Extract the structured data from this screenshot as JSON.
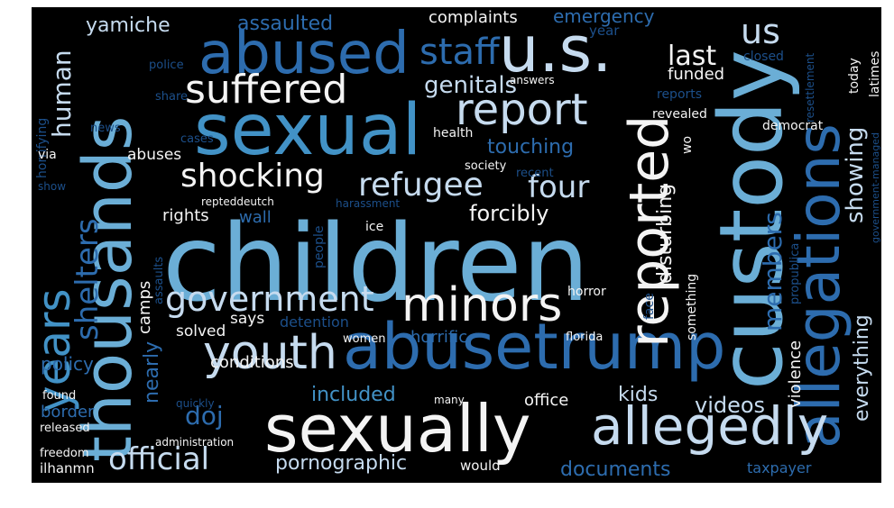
{
  "palette": {
    "white": "#f4f4f4",
    "pale": "#c6dbef",
    "mid": "#6baed6",
    "blue": "#4292c6",
    "dark": "#2d6cae",
    "deep": "#1c4f8a",
    "background": "#000000"
  },
  "words": [
    {
      "text": "children",
      "color": "mid"
    },
    {
      "text": "thousands",
      "color": "mid"
    },
    {
      "text": "custody",
      "color": "mid"
    },
    {
      "text": "sexual",
      "color": "blue"
    },
    {
      "text": "abusetrump",
      "color": "dark"
    },
    {
      "text": "sexually",
      "color": "white"
    },
    {
      "text": "allegations",
      "color": "dark"
    },
    {
      "text": "abused",
      "color": "dark"
    },
    {
      "text": "u.s.",
      "color": "pale"
    },
    {
      "text": "reported",
      "color": "white"
    },
    {
      "text": "allegedly",
      "color": "pale"
    },
    {
      "text": "minors",
      "color": "white"
    },
    {
      "text": "youth",
      "color": "pale"
    },
    {
      "text": "suffered",
      "color": "white"
    },
    {
      "text": "years",
      "color": "blue"
    },
    {
      "text": "report",
      "color": "pale"
    },
    {
      "text": "staff",
      "color": "dark"
    },
    {
      "text": "government",
      "color": "pale"
    },
    {
      "text": "official",
      "color": "pale"
    },
    {
      "text": "shocking",
      "color": "white"
    },
    {
      "text": "refugee",
      "color": "pale"
    },
    {
      "text": "shelters",
      "color": "dark"
    },
    {
      "text": "members",
      "color": "dark"
    },
    {
      "text": "human",
      "color": "pale"
    },
    {
      "text": "genitals",
      "color": "pale"
    },
    {
      "text": "four",
      "color": "pale"
    },
    {
      "text": "us",
      "color": "pale"
    },
    {
      "text": "last",
      "color": "white"
    },
    {
      "text": "yamiche",
      "color": "pale"
    },
    {
      "text": "assaulted",
      "color": "dark"
    },
    {
      "text": "complaints",
      "color": "white"
    },
    {
      "text": "emergency",
      "color": "dark"
    },
    {
      "text": "showing",
      "color": "pale"
    },
    {
      "text": "touching",
      "color": "dark"
    },
    {
      "text": "forcibly",
      "color": "white"
    },
    {
      "text": "disturbing",
      "color": "white"
    },
    {
      "text": "pornographic",
      "color": "pale"
    },
    {
      "text": "documents",
      "color": "dark"
    },
    {
      "text": "doj",
      "color": "dark"
    },
    {
      "text": "included",
      "color": "blue"
    },
    {
      "text": "kids",
      "color": "pale"
    },
    {
      "text": "videos",
      "color": "pale"
    },
    {
      "text": "everything",
      "color": "pale"
    },
    {
      "text": "violence",
      "color": "white"
    },
    {
      "text": "nearly",
      "color": "dark"
    },
    {
      "text": "policy",
      "color": "dark"
    },
    {
      "text": "border",
      "color": "dark"
    },
    {
      "text": "rights",
      "color": "white"
    },
    {
      "text": "wall",
      "color": "dark"
    },
    {
      "text": "camps",
      "color": "white"
    },
    {
      "text": "says",
      "color": "white"
    },
    {
      "text": "detention",
      "color": "deep"
    },
    {
      "text": "solved",
      "color": "white"
    },
    {
      "text": "horrific",
      "color": "dark"
    },
    {
      "text": "conditions",
      "color": "white"
    },
    {
      "text": "office",
      "color": "white"
    },
    {
      "text": "taxpayer",
      "color": "dark"
    },
    {
      "text": "abuses",
      "color": "white"
    },
    {
      "text": "funded",
      "color": "white"
    },
    {
      "text": "year",
      "color": "deep"
    },
    {
      "text": "police",
      "color": "deep"
    },
    {
      "text": "share",
      "color": "deep"
    },
    {
      "text": "horrifying",
      "color": "deep"
    },
    {
      "text": "news",
      "color": "deep"
    },
    {
      "text": "via",
      "color": "white"
    },
    {
      "text": "show",
      "color": "deep"
    },
    {
      "text": "cases",
      "color": "deep"
    },
    {
      "text": "health",
      "color": "white"
    },
    {
      "text": "society",
      "color": "white"
    },
    {
      "text": "recent",
      "color": "deep"
    },
    {
      "text": "repteddeutch",
      "color": "white"
    },
    {
      "text": "harassment",
      "color": "deep"
    },
    {
      "text": "ice",
      "color": "white"
    },
    {
      "text": "people",
      "color": "deep"
    },
    {
      "text": "assaults",
      "color": "deep"
    },
    {
      "text": "wo",
      "color": "white"
    },
    {
      "text": "answers",
      "color": "white"
    },
    {
      "text": "revealed",
      "color": "white"
    },
    {
      "text": "reports",
      "color": "deep"
    },
    {
      "text": "closed",
      "color": "deep"
    },
    {
      "text": "democrat",
      "color": "white"
    },
    {
      "text": "resettlement",
      "color": "deep"
    },
    {
      "text": "today",
      "color": "white"
    },
    {
      "text": "latimes",
      "color": "white"
    },
    {
      "text": "government-managed",
      "color": "deep"
    },
    {
      "text": "propublica",
      "color": "deep"
    },
    {
      "text": "something",
      "color": "white"
    },
    {
      "text": "face",
      "color": "deep"
    },
    {
      "text": "horror",
      "color": "white"
    },
    {
      "text": "florida",
      "color": "white"
    },
    {
      "text": "women",
      "color": "white"
    },
    {
      "text": "found",
      "color": "white"
    },
    {
      "text": "quickly",
      "color": "deep"
    },
    {
      "text": "many",
      "color": "white"
    },
    {
      "text": "released",
      "color": "white"
    },
    {
      "text": "administration",
      "color": "white"
    },
    {
      "text": "freedom",
      "color": "white"
    },
    {
      "text": "ilhanmn",
      "color": "white"
    },
    {
      "text": "would",
      "color": "white"
    }
  ]
}
